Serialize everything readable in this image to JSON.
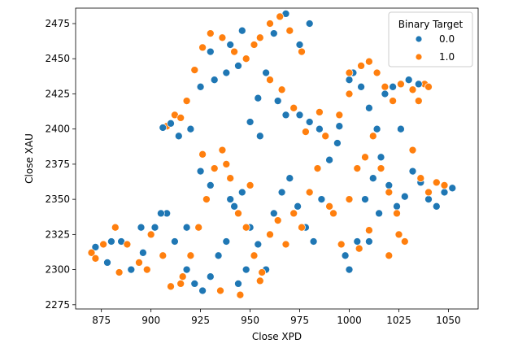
{
  "chart_data": {
    "type": "scatter",
    "title": "",
    "xlabel": "Close XPD",
    "ylabel": "Close XAU",
    "xlim": [
      862,
      1065
    ],
    "ylim": [
      2272,
      2486
    ],
    "xticks": [
      875,
      900,
      925,
      950,
      975,
      1000,
      1025,
      1050
    ],
    "yticks": [
      2275,
      2300,
      2325,
      2350,
      2375,
      2400,
      2425,
      2450,
      2475
    ],
    "grid": false,
    "legend": {
      "title": "Binary Target",
      "placement": "top-right",
      "entries": [
        "0.0",
        "1.0"
      ]
    },
    "colors": {
      "0.0": "#1f77b4",
      "1.0": "#ff7f0e"
    },
    "marker_edge": "#ffffff",
    "series": [
      {
        "name": "0.0",
        "color": "#1f77b4",
        "points": [
          [
            872,
            2316
          ],
          [
            878,
            2305
          ],
          [
            885,
            2320
          ],
          [
            890,
            2300
          ],
          [
            896,
            2312
          ],
          [
            902,
            2330
          ],
          [
            908,
            2340
          ],
          [
            912,
            2320
          ],
          [
            918,
            2300
          ],
          [
            922,
            2290
          ],
          [
            926,
            2285
          ],
          [
            930,
            2295
          ],
          [
            934,
            2310
          ],
          [
            938,
            2320
          ],
          [
            942,
            2345
          ],
          [
            946,
            2355
          ],
          [
            950,
            2330
          ],
          [
            954,
            2318
          ],
          [
            958,
            2300
          ],
          [
            962,
            2340
          ],
          [
            966,
            2355
          ],
          [
            970,
            2365
          ],
          [
            974,
            2345
          ],
          [
            978,
            2330
          ],
          [
            982,
            2320
          ],
          [
            986,
            2350
          ],
          [
            990,
            2378
          ],
          [
            994,
            2390
          ],
          [
            998,
            2310
          ],
          [
            1000,
            2300
          ],
          [
            1004,
            2320
          ],
          [
            1008,
            2350
          ],
          [
            1012,
            2365
          ],
          [
            1016,
            2380
          ],
          [
            1020,
            2360
          ],
          [
            1024,
            2345
          ],
          [
            1028,
            2352
          ],
          [
            1032,
            2370
          ],
          [
            1036,
            2362
          ],
          [
            1040,
            2350
          ],
          [
            1044,
            2345
          ],
          [
            1048,
            2355
          ],
          [
            1052,
            2358
          ],
          [
            1002,
            2440
          ],
          [
            1006,
            2430
          ],
          [
            1010,
            2415
          ],
          [
            1014,
            2400
          ],
          [
            1018,
            2425
          ],
          [
            1022,
            2430
          ],
          [
            1030,
            2435
          ],
          [
            1035,
            2432
          ],
          [
            968,
            2482
          ],
          [
            962,
            2468
          ],
          [
            958,
            2440
          ],
          [
            954,
            2422
          ],
          [
            950,
            2405
          ],
          [
            955,
            2395
          ],
          [
            944,
            2445
          ],
          [
            938,
            2440
          ],
          [
            932,
            2435
          ],
          [
            946,
            2470
          ],
          [
            940,
            2460
          ],
          [
            930,
            2455
          ],
          [
            925,
            2430
          ],
          [
            920,
            2400
          ],
          [
            910,
            2404
          ],
          [
            906,
            2401
          ],
          [
            914,
            2395
          ],
          [
            975,
            2410
          ],
          [
            980,
            2405
          ],
          [
            985,
            2400
          ],
          [
            964,
            2420
          ],
          [
            968,
            2410
          ],
          [
            975,
            2460
          ],
          [
            980,
            2475
          ],
          [
            925,
            2370
          ],
          [
            930,
            2360
          ],
          [
            940,
            2350
          ],
          [
            905,
            2340
          ],
          [
            918,
            2330
          ],
          [
            944,
            2290
          ],
          [
            948,
            2300
          ],
          [
            880,
            2320
          ],
          [
            895,
            2330
          ],
          [
            1010,
            2320
          ],
          [
            1015,
            2340
          ],
          [
            1000,
            2435
          ],
          [
            1026,
            2400
          ],
          [
            995,
            2402
          ]
        ]
      },
      {
        "name": "1.0",
        "color": "#ff7f0e",
        "points": [
          [
            870,
            2312
          ],
          [
            876,
            2318
          ],
          [
            882,
            2330
          ],
          [
            888,
            2318
          ],
          [
            894,
            2305
          ],
          [
            900,
            2325
          ],
          [
            906,
            2310
          ],
          [
            910,
            2288
          ],
          [
            916,
            2295
          ],
          [
            920,
            2310
          ],
          [
            924,
            2330
          ],
          [
            928,
            2350
          ],
          [
            932,
            2372
          ],
          [
            936,
            2385
          ],
          [
            940,
            2365
          ],
          [
            944,
            2340
          ],
          [
            948,
            2330
          ],
          [
            952,
            2310
          ],
          [
            956,
            2298
          ],
          [
            960,
            2325
          ],
          [
            964,
            2335
          ],
          [
            968,
            2318
          ],
          [
            972,
            2340
          ],
          [
            976,
            2330
          ],
          [
            980,
            2355
          ],
          [
            984,
            2372
          ],
          [
            988,
            2395
          ],
          [
            992,
            2340
          ],
          [
            996,
            2318
          ],
          [
            1000,
            2350
          ],
          [
            1004,
            2372
          ],
          [
            1008,
            2380
          ],
          [
            1012,
            2395
          ],
          [
            1016,
            2372
          ],
          [
            1020,
            2355
          ],
          [
            1024,
            2340
          ],
          [
            1028,
            2320
          ],
          [
            1032,
            2385
          ],
          [
            1036,
            2365
          ],
          [
            1040,
            2355
          ],
          [
            1044,
            2362
          ],
          [
            1048,
            2360
          ],
          [
            1006,
            2445
          ],
          [
            1010,
            2448
          ],
          [
            1014,
            2440
          ],
          [
            1018,
            2430
          ],
          [
            1022,
            2420
          ],
          [
            1026,
            2432
          ],
          [
            1032,
            2428
          ],
          [
            1038,
            2432
          ],
          [
            1000,
            2425
          ],
          [
            995,
            2410
          ],
          [
            965,
            2480
          ],
          [
            960,
            2475
          ],
          [
            955,
            2465
          ],
          [
            952,
            2460
          ],
          [
            948,
            2450
          ],
          [
            942,
            2455
          ],
          [
            936,
            2465
          ],
          [
            930,
            2468
          ],
          [
            926,
            2458
          ],
          [
            922,
            2442
          ],
          [
            918,
            2420
          ],
          [
            912,
            2410
          ],
          [
            908,
            2402
          ],
          [
            915,
            2408
          ],
          [
            960,
            2435
          ],
          [
            966,
            2428
          ],
          [
            972,
            2415
          ],
          [
            978,
            2398
          ],
          [
            985,
            2412
          ],
          [
            970,
            2470
          ],
          [
            976,
            2455
          ],
          [
            990,
            2345
          ],
          [
            1005,
            2315
          ],
          [
            1010,
            2328
          ],
          [
            1020,
            2310
          ],
          [
            1025,
            2325
          ],
          [
            926,
            2382
          ],
          [
            938,
            2375
          ],
          [
            950,
            2360
          ],
          [
            955,
            2292
          ],
          [
            945,
            2282
          ],
          [
            935,
            2285
          ],
          [
            915,
            2290
          ],
          [
            898,
            2300
          ],
          [
            884,
            2298
          ],
          [
            872,
            2308
          ],
          [
            1035,
            2420
          ],
          [
            1040,
            2430
          ],
          [
            1000,
            2440
          ]
        ]
      }
    ]
  }
}
